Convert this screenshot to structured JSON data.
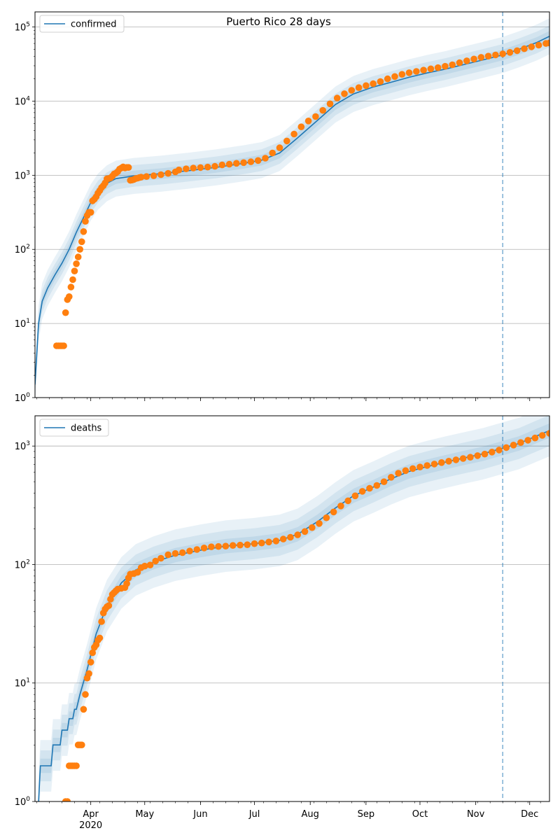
{
  "chart_data": [
    {
      "type": "line",
      "title": "Puerto Rico 28 days",
      "legend": {
        "label": "confirmed",
        "placement": "top-left"
      },
      "x_type": "date",
      "xlim": [
        "2020-03-01",
        "2020-12-12"
      ],
      "yscale": "log",
      "ylim": [
        1,
        160000
      ],
      "y_ticks": [
        {
          "value": 1,
          "base": "10",
          "exp": "0"
        },
        {
          "value": 10,
          "base": "10",
          "exp": "1"
        },
        {
          "value": 100,
          "base": "10",
          "exp": "2"
        },
        {
          "value": 1000,
          "base": "10",
          "exp": "3"
        },
        {
          "value": 10000,
          "base": "10",
          "exp": "4"
        },
        {
          "value": 100000,
          "base": "10",
          "exp": "5"
        }
      ],
      "grid": "y",
      "forecast_start": "2020-11-16",
      "model_line": [
        [
          "2020-03-01",
          1.5
        ],
        [
          "2020-03-03",
          10
        ],
        [
          "2020-03-05",
          20
        ],
        [
          "2020-03-08",
          30
        ],
        [
          "2020-03-12",
          45
        ],
        [
          "2020-03-16",
          65
        ],
        [
          "2020-03-20",
          100
        ],
        [
          "2020-03-24",
          170
        ],
        [
          "2020-03-28",
          270
        ],
        [
          "2020-04-01",
          430
        ],
        [
          "2020-04-05",
          600
        ],
        [
          "2020-04-10",
          780
        ],
        [
          "2020-04-15",
          900
        ],
        [
          "2020-04-25",
          980
        ],
        [
          "2020-05-10",
          1050
        ],
        [
          "2020-05-25",
          1150
        ],
        [
          "2020-06-10",
          1280
        ],
        [
          "2020-06-25",
          1450
        ],
        [
          "2020-07-05",
          1600
        ],
        [
          "2020-07-15",
          2000
        ],
        [
          "2020-07-25",
          3200
        ],
        [
          "2020-08-05",
          5500
        ],
        [
          "2020-08-15",
          9000
        ],
        [
          "2020-08-25",
          12500
        ],
        [
          "2020-09-05",
          15500
        ],
        [
          "2020-09-15",
          18000
        ],
        [
          "2020-09-25",
          21000
        ],
        [
          "2020-10-05",
          24000
        ],
        [
          "2020-10-15",
          27000
        ],
        [
          "2020-10-25",
          31000
        ],
        [
          "2020-11-05",
          36000
        ],
        [
          "2020-11-16",
          42000
        ],
        [
          "2020-11-25",
          50000
        ],
        [
          "2020-12-05",
          62000
        ],
        [
          "2020-12-12",
          75000
        ]
      ],
      "band_widths": [
        1.18,
        1.4,
        1.75
      ],
      "observed": [
        [
          "2020-03-13",
          5
        ],
        [
          "2020-03-14",
          5
        ],
        [
          "2020-03-15",
          5
        ],
        [
          "2020-03-16",
          5
        ],
        [
          "2020-03-17",
          5
        ],
        [
          "2020-03-18",
          14
        ],
        [
          "2020-03-19",
          21
        ],
        [
          "2020-03-20",
          23
        ],
        [
          "2020-03-21",
          31
        ],
        [
          "2020-03-22",
          39
        ],
        [
          "2020-03-23",
          51
        ],
        [
          "2020-03-24",
          64
        ],
        [
          "2020-03-25",
          79
        ],
        [
          "2020-03-26",
          100
        ],
        [
          "2020-03-27",
          127
        ],
        [
          "2020-03-28",
          174
        ],
        [
          "2020-03-29",
          239
        ],
        [
          "2020-03-30",
          286
        ],
        [
          "2020-03-31",
          316
        ],
        [
          "2020-04-01",
          316
        ],
        [
          "2020-04-02",
          452
        ],
        [
          "2020-04-03",
          475
        ],
        [
          "2020-04-04",
          513
        ],
        [
          "2020-04-05",
          573
        ],
        [
          "2020-04-06",
          620
        ],
        [
          "2020-04-07",
          683
        ],
        [
          "2020-04-08",
          725
        ],
        [
          "2020-04-09",
          788
        ],
        [
          "2020-04-10",
          897
        ],
        [
          "2020-04-11",
          903
        ],
        [
          "2020-04-12",
          923
        ],
        [
          "2020-04-13",
          974
        ],
        [
          "2020-04-14",
          1043
        ],
        [
          "2020-04-15",
          1068
        ],
        [
          "2020-04-16",
          1118
        ],
        [
          "2020-04-17",
          1213
        ],
        [
          "2020-04-18",
          1252
        ],
        [
          "2020-04-19",
          1298
        ],
        [
          "2020-04-20",
          1252
        ],
        [
          "2020-04-21",
          1276
        ],
        [
          "2020-04-22",
          1276
        ],
        [
          "2020-04-23",
          855
        ],
        [
          "2020-04-24",
          862
        ],
        [
          "2020-04-25",
          879
        ],
        [
          "2020-04-26",
          903
        ],
        [
          "2020-04-27",
          915
        ],
        [
          "2020-04-28",
          931
        ],
        [
          "2020-04-29",
          943
        ],
        [
          "2020-05-02",
          960
        ],
        [
          "2020-05-06",
          985
        ],
        [
          "2020-05-10",
          1020
        ],
        [
          "2020-05-14",
          1060
        ],
        [
          "2020-05-18",
          1110
        ],
        [
          "2020-05-20",
          1180
        ],
        [
          "2020-05-24",
          1220
        ],
        [
          "2020-05-28",
          1250
        ],
        [
          "2020-06-01",
          1270
        ],
        [
          "2020-06-05",
          1290
        ],
        [
          "2020-06-09",
          1320
        ],
        [
          "2020-06-13",
          1380
        ],
        [
          "2020-06-17",
          1410
        ],
        [
          "2020-06-21",
          1450
        ],
        [
          "2020-06-25",
          1480
        ],
        [
          "2020-06-29",
          1520
        ],
        [
          "2020-07-03",
          1580
        ],
        [
          "2020-07-07",
          1700
        ],
        [
          "2020-07-11",
          2000
        ],
        [
          "2020-07-15",
          2350
        ],
        [
          "2020-07-19",
          2900
        ],
        [
          "2020-07-23",
          3600
        ],
        [
          "2020-07-27",
          4500
        ],
        [
          "2020-07-31",
          5400
        ],
        [
          "2020-08-04",
          6200
        ],
        [
          "2020-08-08",
          7500
        ],
        [
          "2020-08-12",
          9200
        ],
        [
          "2020-08-16",
          11000
        ],
        [
          "2020-08-20",
          12600
        ],
        [
          "2020-08-24",
          14000
        ],
        [
          "2020-08-28",
          15200
        ],
        [
          "2020-09-01",
          16200
        ],
        [
          "2020-09-05",
          17200
        ],
        [
          "2020-09-09",
          18400
        ],
        [
          "2020-09-13",
          20000
        ],
        [
          "2020-09-17",
          21500
        ],
        [
          "2020-09-21",
          23000
        ],
        [
          "2020-09-25",
          24200
        ],
        [
          "2020-09-29",
          25200
        ],
        [
          "2020-10-03",
          26200
        ],
        [
          "2020-10-07",
          27300
        ],
        [
          "2020-10-11",
          28300
        ],
        [
          "2020-10-15",
          29500
        ],
        [
          "2020-10-19",
          31000
        ],
        [
          "2020-10-23",
          33000
        ],
        [
          "2020-10-27",
          35000
        ],
        [
          "2020-10-31",
          37000
        ],
        [
          "2020-11-04",
          39000
        ],
        [
          "2020-11-08",
          40500
        ],
        [
          "2020-11-12",
          42000
        ],
        [
          "2020-11-16",
          43500
        ],
        [
          "2020-11-20",
          45500
        ],
        [
          "2020-11-24",
          48000
        ],
        [
          "2020-11-28",
          51000
        ],
        [
          "2020-12-02",
          54000
        ],
        [
          "2020-12-06",
          57000
        ],
        [
          "2020-12-10",
          60000
        ],
        [
          "2020-12-12",
          61000
        ]
      ]
    },
    {
      "type": "line",
      "title": "",
      "legend": {
        "label": "deaths",
        "placement": "top-left"
      },
      "x_type": "date",
      "xlim": [
        "2020-03-01",
        "2020-12-12"
      ],
      "yscale": "log",
      "ylim": [
        1,
        1800
      ],
      "y_ticks": [
        {
          "value": 1,
          "base": "10",
          "exp": "0"
        },
        {
          "value": 10,
          "base": "10",
          "exp": "1"
        },
        {
          "value": 100,
          "base": "10",
          "exp": "2"
        },
        {
          "value": 1000,
          "base": "10",
          "exp": "3"
        }
      ],
      "x_ticks": [
        {
          "date": "2020-04-01",
          "label": "Apr",
          "sublabel": "2020"
        },
        {
          "date": "2020-05-01",
          "label": "May"
        },
        {
          "date": "2020-06-01",
          "label": "Jun"
        },
        {
          "date": "2020-07-01",
          "label": "Jul"
        },
        {
          "date": "2020-08-01",
          "label": "Aug"
        },
        {
          "date": "2020-09-01",
          "label": "Sep"
        },
        {
          "date": "2020-10-01",
          "label": "Oct"
        },
        {
          "date": "2020-11-01",
          "label": "Nov"
        },
        {
          "date": "2020-12-01",
          "label": "Dec"
        }
      ],
      "grid": "y",
      "forecast_start": "2020-11-16",
      "model_line": [
        [
          "2020-03-03",
          1
        ],
        [
          "2020-03-04",
          2
        ],
        [
          "2020-03-10",
          2
        ],
        [
          "2020-03-11",
          3
        ],
        [
          "2020-03-15",
          3
        ],
        [
          "2020-03-16",
          4
        ],
        [
          "2020-03-19",
          4
        ],
        [
          "2020-03-20",
          5
        ],
        [
          "2020-03-22",
          5
        ],
        [
          "2020-03-23",
          6
        ],
        [
          "2020-03-24",
          6
        ],
        [
          "2020-03-26",
          8
        ],
        [
          "2020-03-30",
          13
        ],
        [
          "2020-04-04",
          26
        ],
        [
          "2020-04-10",
          45
        ],
        [
          "2020-04-18",
          70
        ],
        [
          "2020-04-26",
          90
        ],
        [
          "2020-05-06",
          105
        ],
        [
          "2020-05-18",
          120
        ],
        [
          "2020-06-01",
          132
        ],
        [
          "2020-06-15",
          143
        ],
        [
          "2020-07-01",
          150
        ],
        [
          "2020-07-15",
          160
        ],
        [
          "2020-07-25",
          180
        ],
        [
          "2020-08-05",
          230
        ],
        [
          "2020-08-15",
          300
        ],
        [
          "2020-08-25",
          380
        ],
        [
          "2020-09-05",
          450
        ],
        [
          "2020-09-15",
          530
        ],
        [
          "2020-09-25",
          610
        ],
        [
          "2020-10-05",
          670
        ],
        [
          "2020-10-15",
          730
        ],
        [
          "2020-10-25",
          790
        ],
        [
          "2020-11-05",
          860
        ],
        [
          "2020-11-16",
          960
        ],
        [
          "2020-11-25",
          1050
        ],
        [
          "2020-12-05",
          1220
        ],
        [
          "2020-12-12",
          1350
        ]
      ],
      "band_widths": [
        1.15,
        1.35,
        1.65
      ],
      "observed": [
        [
          "2020-03-18",
          1
        ],
        [
          "2020-03-19",
          1
        ],
        [
          "2020-03-20",
          2
        ],
        [
          "2020-03-21",
          2
        ],
        [
          "2020-03-22",
          2
        ],
        [
          "2020-03-23",
          2
        ],
        [
          "2020-03-24",
          2
        ],
        [
          "2020-03-25",
          3
        ],
        [
          "2020-03-26",
          3
        ],
        [
          "2020-03-27",
          3
        ],
        [
          "2020-03-28",
          6
        ],
        [
          "2020-03-29",
          8
        ],
        [
          "2020-03-30",
          11
        ],
        [
          "2020-03-31",
          12
        ],
        [
          "2020-04-01",
          15
        ],
        [
          "2020-04-02",
          18
        ],
        [
          "2020-04-03",
          20
        ],
        [
          "2020-04-04",
          21
        ],
        [
          "2020-04-05",
          23
        ],
        [
          "2020-04-06",
          24
        ],
        [
          "2020-04-07",
          33
        ],
        [
          "2020-04-08",
          39
        ],
        [
          "2020-04-09",
          42
        ],
        [
          "2020-04-10",
          44
        ],
        [
          "2020-04-11",
          45
        ],
        [
          "2020-04-12",
          51
        ],
        [
          "2020-04-13",
          56
        ],
        [
          "2020-04-14",
          58
        ],
        [
          "2020-04-15",
          60
        ],
        [
          "2020-04-16",
          62
        ],
        [
          "2020-04-18",
          63
        ],
        [
          "2020-04-20",
          64
        ],
        [
          "2020-04-21",
          69
        ],
        [
          "2020-04-22",
          77
        ],
        [
          "2020-04-23",
          83
        ],
        [
          "2020-04-25",
          84
        ],
        [
          "2020-04-27",
          86
        ],
        [
          "2020-04-29",
          94
        ],
        [
          "2020-05-01",
          97
        ],
        [
          "2020-05-04",
          99
        ],
        [
          "2020-05-07",
          107
        ],
        [
          "2020-05-10",
          113
        ],
        [
          "2020-05-14",
          121
        ],
        [
          "2020-05-18",
          124
        ],
        [
          "2020-05-22",
          126
        ],
        [
          "2020-05-26",
          130
        ],
        [
          "2020-05-30",
          134
        ],
        [
          "2020-06-03",
          138
        ],
        [
          "2020-06-07",
          141
        ],
        [
          "2020-06-11",
          142
        ],
        [
          "2020-06-15",
          143
        ],
        [
          "2020-06-19",
          145
        ],
        [
          "2020-06-23",
          146
        ],
        [
          "2020-06-27",
          147
        ],
        [
          "2020-07-01",
          150
        ],
        [
          "2020-07-05",
          152
        ],
        [
          "2020-07-09",
          155
        ],
        [
          "2020-07-13",
          158
        ],
        [
          "2020-07-17",
          164
        ],
        [
          "2020-07-21",
          170
        ],
        [
          "2020-07-25",
          178
        ],
        [
          "2020-07-29",
          190
        ],
        [
          "2020-08-02",
          205
        ],
        [
          "2020-08-06",
          222
        ],
        [
          "2020-08-10",
          248
        ],
        [
          "2020-08-14",
          278
        ],
        [
          "2020-08-18",
          312
        ],
        [
          "2020-08-22",
          345
        ],
        [
          "2020-08-26",
          380
        ],
        [
          "2020-08-30",
          415
        ],
        [
          "2020-09-03",
          440
        ],
        [
          "2020-09-07",
          465
        ],
        [
          "2020-09-11",
          500
        ],
        [
          "2020-09-15",
          545
        ],
        [
          "2020-09-19",
          590
        ],
        [
          "2020-09-23",
          620
        ],
        [
          "2020-09-27",
          645
        ],
        [
          "2020-10-01",
          665
        ],
        [
          "2020-10-05",
          685
        ],
        [
          "2020-10-09",
          705
        ],
        [
          "2020-10-13",
          725
        ],
        [
          "2020-10-17",
          745
        ],
        [
          "2020-10-21",
          765
        ],
        [
          "2020-10-25",
          785
        ],
        [
          "2020-10-29",
          805
        ],
        [
          "2020-11-02",
          830
        ],
        [
          "2020-11-06",
          855
        ],
        [
          "2020-11-10",
          890
        ],
        [
          "2020-11-14",
          925
        ],
        [
          "2020-11-18",
          970
        ],
        [
          "2020-11-22",
          1020
        ],
        [
          "2020-11-26",
          1070
        ],
        [
          "2020-11-30",
          1120
        ],
        [
          "2020-12-04",
          1170
        ],
        [
          "2020-12-08",
          1230
        ],
        [
          "2020-12-12",
          1280
        ]
      ]
    }
  ],
  "colors": {
    "model_line": "#1f77b4",
    "band": "#1f77b4",
    "observed": "#ff7f0e",
    "grid": "#b0b0b0",
    "forecast_line": "#1f77b4"
  }
}
